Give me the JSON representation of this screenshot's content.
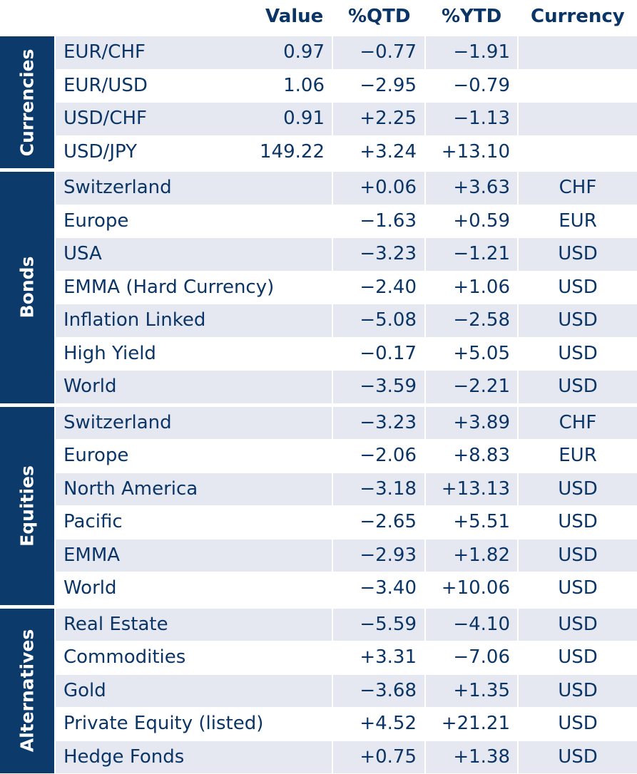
{
  "headers": {
    "value": "Value",
    "qtd": "%QTD",
    "ytd": "%YTD",
    "currency": "Currency"
  },
  "groups": [
    {
      "label": "Currencies",
      "rows": [
        {
          "name": "EUR/CHF",
          "value": "0.97",
          "qtd": "−0.77",
          "ytd": "−1.91",
          "currency": ""
        },
        {
          "name": "EUR/USD",
          "value": "1.06",
          "qtd": "−2.95",
          "ytd": "−0.79",
          "currency": ""
        },
        {
          "name": "USD/CHF",
          "value": "0.91",
          "qtd": "+2.25",
          "ytd": "−1.13",
          "currency": ""
        },
        {
          "name": "USD/JPY",
          "value": "149.22",
          "qtd": "+3.24",
          "ytd": "+13.10",
          "currency": ""
        }
      ]
    },
    {
      "label": "Bonds",
      "rows": [
        {
          "name": "Switzerland",
          "value": "",
          "qtd": "+0.06",
          "ytd": "+3.63",
          "currency": "CHF"
        },
        {
          "name": "Europe",
          "value": "",
          "qtd": "−1.63",
          "ytd": "+0.59",
          "currency": "EUR"
        },
        {
          "name": "USA",
          "value": "",
          "qtd": "−3.23",
          "ytd": "−1.21",
          "currency": "USD"
        },
        {
          "name": "EMMA (Hard Currency)",
          "value": "",
          "qtd": "−2.40",
          "ytd": "+1.06",
          "currency": "USD"
        },
        {
          "name": "Inflation Linked",
          "value": "",
          "qtd": "−5.08",
          "ytd": "−2.58",
          "currency": "USD"
        },
        {
          "name": "High Yield",
          "value": "",
          "qtd": "−0.17",
          "ytd": "+5.05",
          "currency": "USD"
        },
        {
          "name": "World",
          "value": "",
          "qtd": "−3.59",
          "ytd": "−2.21",
          "currency": "USD"
        }
      ]
    },
    {
      "label": "Equities",
      "rows": [
        {
          "name": "Switzerland",
          "value": "",
          "qtd": "−3.23",
          "ytd": "+3.89",
          "currency": "CHF"
        },
        {
          "name": "Europe",
          "value": "",
          "qtd": "−2.06",
          "ytd": "+8.83",
          "currency": "EUR"
        },
        {
          "name": "North America",
          "value": "",
          "qtd": "−3.18",
          "ytd": "+13.13",
          "currency": "USD"
        },
        {
          "name": "Pacific",
          "value": "",
          "qtd": "−2.65",
          "ytd": "+5.51",
          "currency": "USD"
        },
        {
          "name": "EMMA",
          "value": "",
          "qtd": "−2.93",
          "ytd": "+1.82",
          "currency": "USD"
        },
        {
          "name": "World",
          "value": "",
          "qtd": "−3.40",
          "ytd": "+10.06",
          "currency": "USD"
        }
      ]
    },
    {
      "label": "Alternatives",
      "rows": [
        {
          "name": "Real Estate",
          "value": "",
          "qtd": "−5.59",
          "ytd": "−4.10",
          "currency": "USD"
        },
        {
          "name": "Commodities",
          "value": "",
          "qtd": "+3.31",
          "ytd": "−7.06",
          "currency": "USD"
        },
        {
          "name": "Gold",
          "value": "",
          "qtd": "−3.68",
          "ytd": "+1.35",
          "currency": "USD"
        },
        {
          "name": "Private Equity (listed)",
          "value": "",
          "qtd": "+4.52",
          "ytd": "+21.21",
          "currency": "USD"
        },
        {
          "name": "Hedge Fonds",
          "value": "",
          "qtd": "+0.75",
          "ytd": "+1.38",
          "currency": "USD"
        }
      ]
    }
  ]
}
